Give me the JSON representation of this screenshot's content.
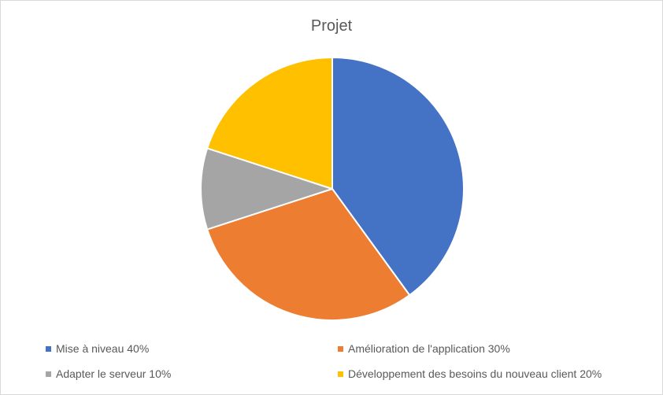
{
  "chart_data": {
    "type": "pie",
    "title": "Projet",
    "slices": [
      {
        "label": "Mise à niveau 40%",
        "value": 40,
        "color": "#4472c4"
      },
      {
        "label": "Amélioration de l'application 30%",
        "value": 30,
        "color": "#ed7d31"
      },
      {
        "label": "Adapter le serveur 10%",
        "value": 10,
        "color": "#a5a5a5"
      },
      {
        "label": "Développement des besoins du nouveau client 20%",
        "value": 20,
        "color": "#ffc000"
      }
    ],
    "legend_position": "bottom"
  }
}
